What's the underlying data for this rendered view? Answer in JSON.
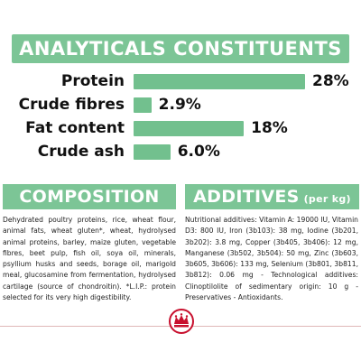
{
  "analytical": {
    "title": "ANALYTICALS CONSTITUENTS",
    "rows": [
      {
        "label": "Protein",
        "value": "28%",
        "amount": 28
      },
      {
        "label": "Crude fibres",
        "value": "2.9%",
        "amount": 2.9
      },
      {
        "label": "Fat content",
        "value": "18%",
        "amount": 18
      },
      {
        "label": "Crude ash",
        "value": "6.0%",
        "amount": 6.0
      }
    ],
    "bar_color": "#72c08e"
  },
  "composition": {
    "title": "COMPOSITION",
    "text": "Dehydrated poultry proteins, rice, wheat flour, animal fats, wheat gluten*, wheat, hydrolysed animal proteins, barley, maize gluten, vegetable fibres, beet pulp, fish oil, soya oil, minerals, psyllium husks and seeds, borage oil, marigold meal, glucosamine from fermentation, hydrolysed cartilage (source of chondroitin). *L.I.P.: protein selected for its very high digestibility."
  },
  "additives": {
    "title": "ADDITIVES",
    "title_suffix": "(per kg)",
    "text": "Nutritional additives: Vitamin A: 19000 IU, Vitamin D3: 800 IU, Iron (3b103): 38 mg, Iodine (3b201, 3b202): 3.8 mg, Copper (3b405, 3b406): 12 mg, Manganese (3b502, 3b504): 50 mg, Zinc (3b603, 3b605, 3b606): 133 mg, Selenium (3b801, 3b811, 3b812): 0.06 mg - Technological additives: Clinoptilolite of sedimentary origin: 10 g - Preservatives - Antioxidants."
  },
  "footer": {
    "logo": "royal-canin-crown-logo",
    "line_color": "#e0b7b7"
  },
  "colors": {
    "accent": "#7cc596"
  }
}
